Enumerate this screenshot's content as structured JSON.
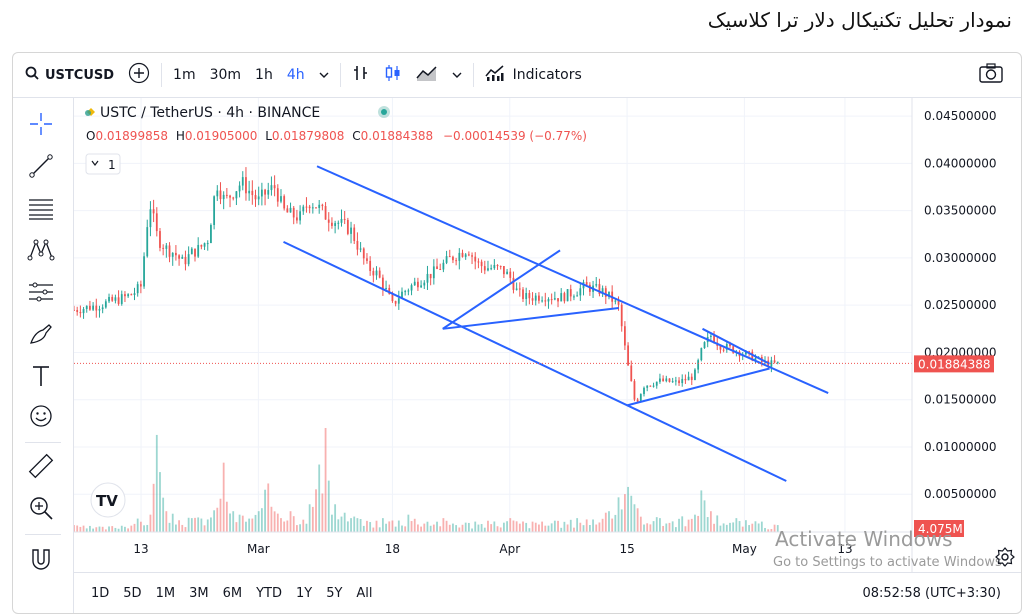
{
  "page_heading": "نمودار تحلیل تکنیکال دلار ترا کلاسیک",
  "toolbar": {
    "symbol": "USTCUSD",
    "intervals": [
      "1m",
      "30m",
      "1h",
      "4h"
    ],
    "active_interval": "4h",
    "indicators_label": "Indicators"
  },
  "legend": {
    "title": "USTC / TetherUS · 4h · BINANCE",
    "o_label": "O",
    "o": "0.01899858",
    "h_label": "H",
    "h": "0.01905000",
    "l_label": "L",
    "l": "0.01879808",
    "c_label": "C",
    "c": "0.01884388",
    "change": "−0.00014539 (−0.77%)",
    "indicator_count": "1"
  },
  "price_tag": "0.01884388",
  "volume_tag": "4.075M",
  "bottom": {
    "ranges": [
      "1D",
      "5D",
      "1M",
      "3M",
      "6M",
      "YTD",
      "1Y",
      "5Y",
      "All"
    ],
    "clock": "08:52:58 (UTC+3:30)"
  },
  "watermark": {
    "line1": "Activate Windows",
    "line2": "Go to Settings to activate Windows."
  },
  "colors": {
    "up": "#26a69a",
    "down": "#ef5350",
    "trendline": "#2962ff",
    "price_tag": "#ef5350"
  },
  "icons": [
    "search-icon",
    "add-symbol-icon",
    "bar-style-icon",
    "candle-style-icon",
    "area-style-icon",
    "indicators-icon",
    "camera-icon",
    "crosshair-icon",
    "trendline-icon",
    "fib-icon",
    "pattern-icon",
    "prediction-icon",
    "brush-icon",
    "text-icon",
    "emoji-icon",
    "ruler-icon",
    "zoom-icon",
    "magnet-icon",
    "settings-icon"
  ],
  "chart_data": {
    "type": "candlestick",
    "x_ticks": [
      "13",
      "Mar",
      "18",
      "Apr",
      "15",
      "May",
      "13"
    ],
    "y_ticks": [
      "0.04500000",
      "0.04000000",
      "0.03500000",
      "0.03000000",
      "0.02500000",
      "0.02000000",
      "0.01500000",
      "0.01000000",
      "0.00500000"
    ],
    "ylim": [
      0.001,
      0.0465
    ],
    "x_domain": [
      0,
      100
    ],
    "x_tick_positions": [
      8,
      22,
      38,
      52,
      66,
      80,
      92
    ],
    "price_path": [
      [
        0,
        0.0245
      ],
      [
        3,
        0.025
      ],
      [
        6,
        0.0258
      ],
      [
        7,
        0.0262
      ],
      [
        8,
        0.027
      ],
      [
        9,
        0.036
      ],
      [
        10,
        0.032
      ],
      [
        11,
        0.031
      ],
      [
        12,
        0.0305
      ],
      [
        13,
        0.0295
      ],
      [
        14,
        0.0305
      ],
      [
        15,
        0.031
      ],
      [
        16,
        0.032
      ],
      [
        17,
        0.038
      ],
      [
        18,
        0.036
      ],
      [
        19,
        0.037
      ],
      [
        20,
        0.038
      ],
      [
        21,
        0.037
      ],
      [
        22,
        0.036
      ],
      [
        23,
        0.037
      ],
      [
        24,
        0.0375
      ],
      [
        25,
        0.035
      ],
      [
        26,
        0.0345
      ],
      [
        27,
        0.0343
      ],
      [
        28,
        0.036
      ],
      [
        29,
        0.0355
      ],
      [
        30,
        0.0345
      ],
      [
        31,
        0.034
      ],
      [
        33,
        0.033
      ],
      [
        34,
        0.031
      ],
      [
        35,
        0.029
      ],
      [
        36,
        0.0285
      ],
      [
        37,
        0.027
      ],
      [
        38,
        0.025
      ],
      [
        39,
        0.0262
      ],
      [
        41,
        0.0275
      ],
      [
        43,
        0.0285
      ],
      [
        45,
        0.03
      ],
      [
        47,
        0.031
      ],
      [
        48,
        0.0295
      ],
      [
        49,
        0.029
      ],
      [
        51,
        0.0288
      ],
      [
        52,
        0.028
      ],
      [
        53,
        0.0262
      ],
      [
        54,
        0.0258
      ],
      [
        56,
        0.026
      ],
      [
        58,
        0.0258
      ],
      [
        60,
        0.0265
      ],
      [
        61,
        0.027
      ],
      [
        63,
        0.0265
      ],
      [
        64,
        0.0258
      ],
      [
        65,
        0.0248
      ],
      [
        66,
        0.019
      ],
      [
        67,
        0.0145
      ],
      [
        68,
        0.0165
      ],
      [
        70,
        0.017
      ],
      [
        72,
        0.0168
      ],
      [
        74,
        0.0175
      ],
      [
        75,
        0.0205
      ],
      [
        76,
        0.0218
      ],
      [
        77,
        0.0208
      ],
      [
        79,
        0.0202
      ],
      [
        81,
        0.0195
      ],
      [
        82,
        0.019
      ],
      [
        83,
        0.0188
      ],
      [
        84,
        0.0188
      ]
    ],
    "volume": [
      [
        0,
        0.1
      ],
      [
        4,
        0.08
      ],
      [
        9,
        0.25
      ],
      [
        10,
        1.4
      ],
      [
        11,
        0.3
      ],
      [
        14,
        0.2
      ],
      [
        17,
        0.35
      ],
      [
        18,
        1.0
      ],
      [
        19,
        0.3
      ],
      [
        22,
        0.3
      ],
      [
        23,
        0.7
      ],
      [
        26,
        0.3
      ],
      [
        28,
        0.4
      ],
      [
        30,
        1.5
      ],
      [
        31,
        0.4
      ],
      [
        34,
        0.2
      ],
      [
        37,
        0.2
      ],
      [
        40,
        0.25
      ],
      [
        44,
        0.2
      ],
      [
        48,
        0.15
      ],
      [
        52,
        0.2
      ],
      [
        56,
        0.15
      ],
      [
        60,
        0.2
      ],
      [
        64,
        0.3
      ],
      [
        65,
        0.5
      ],
      [
        66,
        0.65
      ],
      [
        67,
        0.4
      ],
      [
        70,
        0.2
      ],
      [
        74,
        0.25
      ],
      [
        75,
        0.6
      ],
      [
        76,
        0.3
      ],
      [
        79,
        0.2
      ],
      [
        82,
        0.15
      ],
      [
        84,
        0.1
      ]
    ],
    "volume_max": 1.5,
    "last_close": 0.01884388,
    "trendlines": [
      [
        [
          29,
          0.0397
        ],
        [
          90,
          0.0157
        ]
      ],
      [
        [
          25,
          0.0317
        ],
        [
          85,
          0.0064
        ]
      ],
      [
        [
          44,
          0.0225
        ],
        [
          58,
          0.0308
        ]
      ],
      [
        [
          44,
          0.0225
        ],
        [
          65,
          0.0247
        ]
      ],
      [
        [
          66,
          0.0144
        ],
        [
          83,
          0.0183
        ]
      ],
      [
        [
          75,
          0.0225
        ],
        [
          83,
          0.0188
        ]
      ]
    ]
  }
}
